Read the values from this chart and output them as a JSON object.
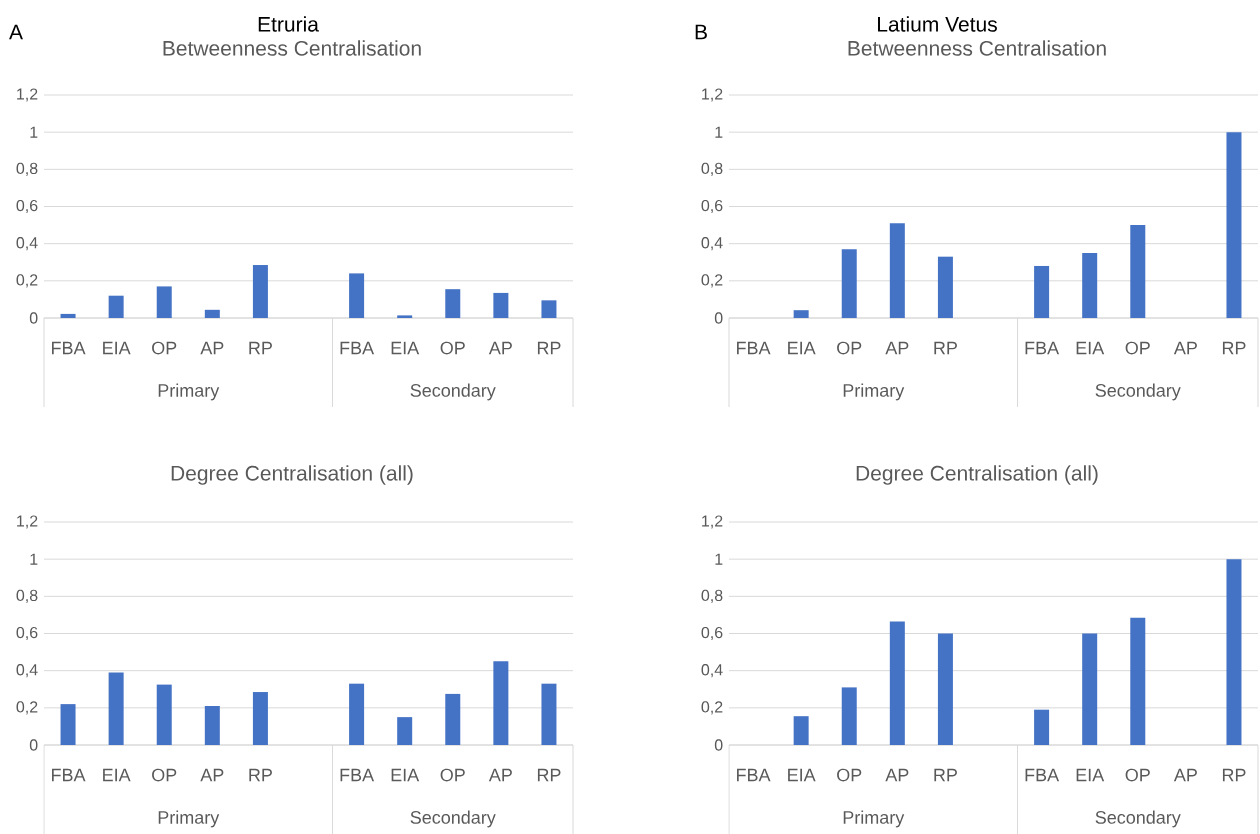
{
  "chart_data": [
    {
      "type": "bar",
      "title": "Betweenness Centralisation",
      "categories": [
        "FBA",
        "EIA",
        "OP",
        "AP",
        "RP",
        null,
        "FBA",
        "EIA",
        "OP",
        "AP",
        "RP"
      ],
      "values": [
        0.022,
        0.12,
        0.17,
        0.044,
        0.285,
        null,
        0.24,
        0.014,
        0.155,
        0.135,
        0.095
      ],
      "color": "#4472c4",
      "ylim": [
        0,
        1.2
      ],
      "yticks": [
        0,
        {
          "value": 0.2,
          "label": "0,2"
        },
        {
          "value": 0.4,
          "label": "0,4"
        },
        {
          "value": 0.6,
          "label": "0,6"
        },
        {
          "value": 0.8,
          "label": "0,8"
        },
        1,
        {
          "value": 1.2,
          "label": "1,2"
        }
      ],
      "grid": "y",
      "annotations": [
        "Primary",
        "Secondary",
        "A",
        "Etruria"
      ]
    },
    {
      "type": "bar",
      "title": "Betweenness Centralisation",
      "categories": [
        "FBA",
        "EIA",
        "OP",
        "AP",
        "RP",
        null,
        "FBA",
        "EIA",
        "OP",
        "AP",
        "RP"
      ],
      "values": [
        0,
        0.042,
        0.37,
        0.51,
        0.33,
        null,
        0.28,
        0.35,
        0.5,
        0,
        1.0
      ],
      "color": "#4472c4",
      "ylim": [
        0,
        1.2
      ],
      "yticks": [
        0,
        {
          "value": 0.2,
          "label": "0,2"
        },
        {
          "value": 0.4,
          "label": "0,4"
        },
        {
          "value": 0.6,
          "label": "0,6"
        },
        {
          "value": 0.8,
          "label": "0,8"
        },
        1,
        {
          "value": 1.2,
          "label": "1,2"
        }
      ],
      "grid": "y",
      "annotations": [
        "Primary",
        "Secondary",
        "B",
        "Latium Vetus"
      ]
    },
    {
      "type": "bar",
      "title": "Degree Centralisation (all)",
      "categories": [
        "FBA",
        "EIA",
        "OP",
        "AP",
        "RP",
        null,
        "FBA",
        "EIA",
        "OP",
        "AP",
        "RP"
      ],
      "values": [
        0.22,
        0.39,
        0.325,
        0.21,
        0.285,
        null,
        0.33,
        0.15,
        0.275,
        0.45,
        0.33
      ],
      "color": "#4472c4",
      "ylim": [
        0,
        1.2
      ],
      "yticks": [
        0,
        {
          "value": 0.2,
          "label": "0,2"
        },
        {
          "value": 0.4,
          "label": "0,4"
        },
        {
          "value": 0.6,
          "label": "0,6"
        },
        {
          "value": 0.8,
          "label": "0,8"
        },
        1,
        {
          "value": 1.2,
          "label": "1,2"
        }
      ],
      "grid": "y",
      "annotations": [
        "Primary",
        "Secondary"
      ]
    },
    {
      "type": "bar",
      "title": "Degree Centralisation (all)",
      "categories": [
        "FBA",
        "EIA",
        "OP",
        "AP",
        "RP",
        null,
        "FBA",
        "EIA",
        "OP",
        "AP",
        "RP"
      ],
      "values": [
        0,
        0.155,
        0.31,
        0.665,
        0.6,
        null,
        0.19,
        0.6,
        0.685,
        0,
        1.0
      ],
      "color": "#4472c4",
      "ylim": [
        0,
        1.2
      ],
      "yticks": [
        0,
        {
          "value": 0.2,
          "label": "0,2"
        },
        {
          "value": 0.4,
          "label": "0,4"
        },
        {
          "value": 0.6,
          "label": "0,6"
        },
        {
          "value": 0.8,
          "label": "0,8"
        },
        1,
        {
          "value": 1.2,
          "label": "1,2"
        }
      ],
      "grid": "y",
      "annotations": [
        "Primary",
        "Secondary"
      ]
    }
  ]
}
